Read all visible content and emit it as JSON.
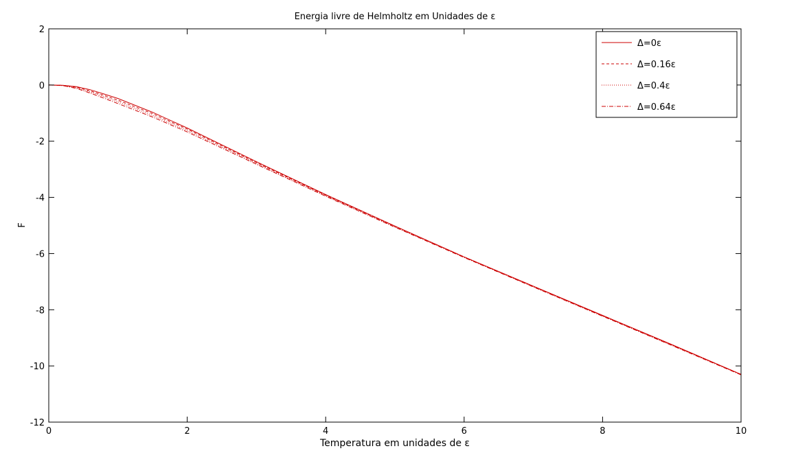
{
  "chart_data": {
    "type": "line",
    "title": "Energia livre de Helmholtz em Unidades de ε",
    "xlabel": "Temperatura em unidades de ε",
    "ylabel": "F",
    "xlim": [
      0,
      10
    ],
    "ylim": [
      -12,
      2
    ],
    "xticks": [
      0,
      2,
      4,
      6,
      8,
      10
    ],
    "yticks": [
      2,
      0,
      -2,
      -4,
      -6,
      -8,
      -10,
      -12
    ],
    "xtick_labels": [
      "0",
      "2",
      "4",
      "6",
      "8",
      "10"
    ],
    "ytick_labels": [
      "2",
      "0",
      "-2",
      "-4",
      "-6",
      "-8",
      "-10",
      "-12"
    ],
    "grid": false,
    "legend_position": "top-right",
    "series": [
      {
        "name": "Δ=0ε",
        "color": "#cc0000",
        "style": "solid",
        "x": [
          0,
          0.2,
          0.4,
          0.6,
          0.8,
          1.0,
          1.5,
          2.0,
          3.0,
          4.0,
          5.0,
          6.0,
          7.0,
          8.0,
          9.0,
          10.0
        ],
        "y": [
          0,
          -0.01,
          -0.06,
          -0.17,
          -0.32,
          -0.48,
          -0.97,
          -1.53,
          -2.73,
          -3.9,
          -5.02,
          -6.12,
          -7.16,
          -8.2,
          -9.24,
          -10.3
        ]
      },
      {
        "name": "Δ=0.16ε",
        "color": "#cc0000",
        "style": "dashed",
        "x": [
          0,
          0.2,
          0.4,
          0.6,
          0.8,
          1.0,
          1.5,
          2.0,
          3.0,
          4.0,
          5.0,
          6.0,
          7.0,
          8.0,
          9.0,
          10.0
        ],
        "y": [
          0,
          -0.01,
          -0.08,
          -0.21,
          -0.37,
          -0.54,
          -1.02,
          -1.57,
          -2.76,
          -3.92,
          -5.03,
          -6.12,
          -7.17,
          -8.21,
          -9.25,
          -10.3
        ]
      },
      {
        "name": "Δ=0.4ε",
        "color": "#cc0000",
        "style": "dotted",
        "x": [
          0,
          0.2,
          0.4,
          0.6,
          0.8,
          1.0,
          1.5,
          2.0,
          3.0,
          4.0,
          5.0,
          6.0,
          7.0,
          8.0,
          9.0,
          10.0
        ],
        "y": [
          0,
          -0.02,
          -0.1,
          -0.25,
          -0.42,
          -0.6,
          -1.08,
          -1.62,
          -2.79,
          -3.94,
          -5.05,
          -6.13,
          -7.18,
          -8.22,
          -9.26,
          -10.31
        ]
      },
      {
        "name": "Δ=0.64ε",
        "color": "#cc0000",
        "style": "dashdot",
        "x": [
          0,
          0.2,
          0.4,
          0.6,
          0.8,
          1.0,
          1.5,
          2.0,
          3.0,
          4.0,
          5.0,
          6.0,
          7.0,
          8.0,
          9.0,
          10.0
        ],
        "y": [
          0,
          -0.02,
          -0.12,
          -0.29,
          -0.47,
          -0.66,
          -1.14,
          -1.67,
          -2.82,
          -3.96,
          -5.06,
          -6.14,
          -7.19,
          -8.23,
          -9.27,
          -10.32
        ]
      }
    ]
  }
}
